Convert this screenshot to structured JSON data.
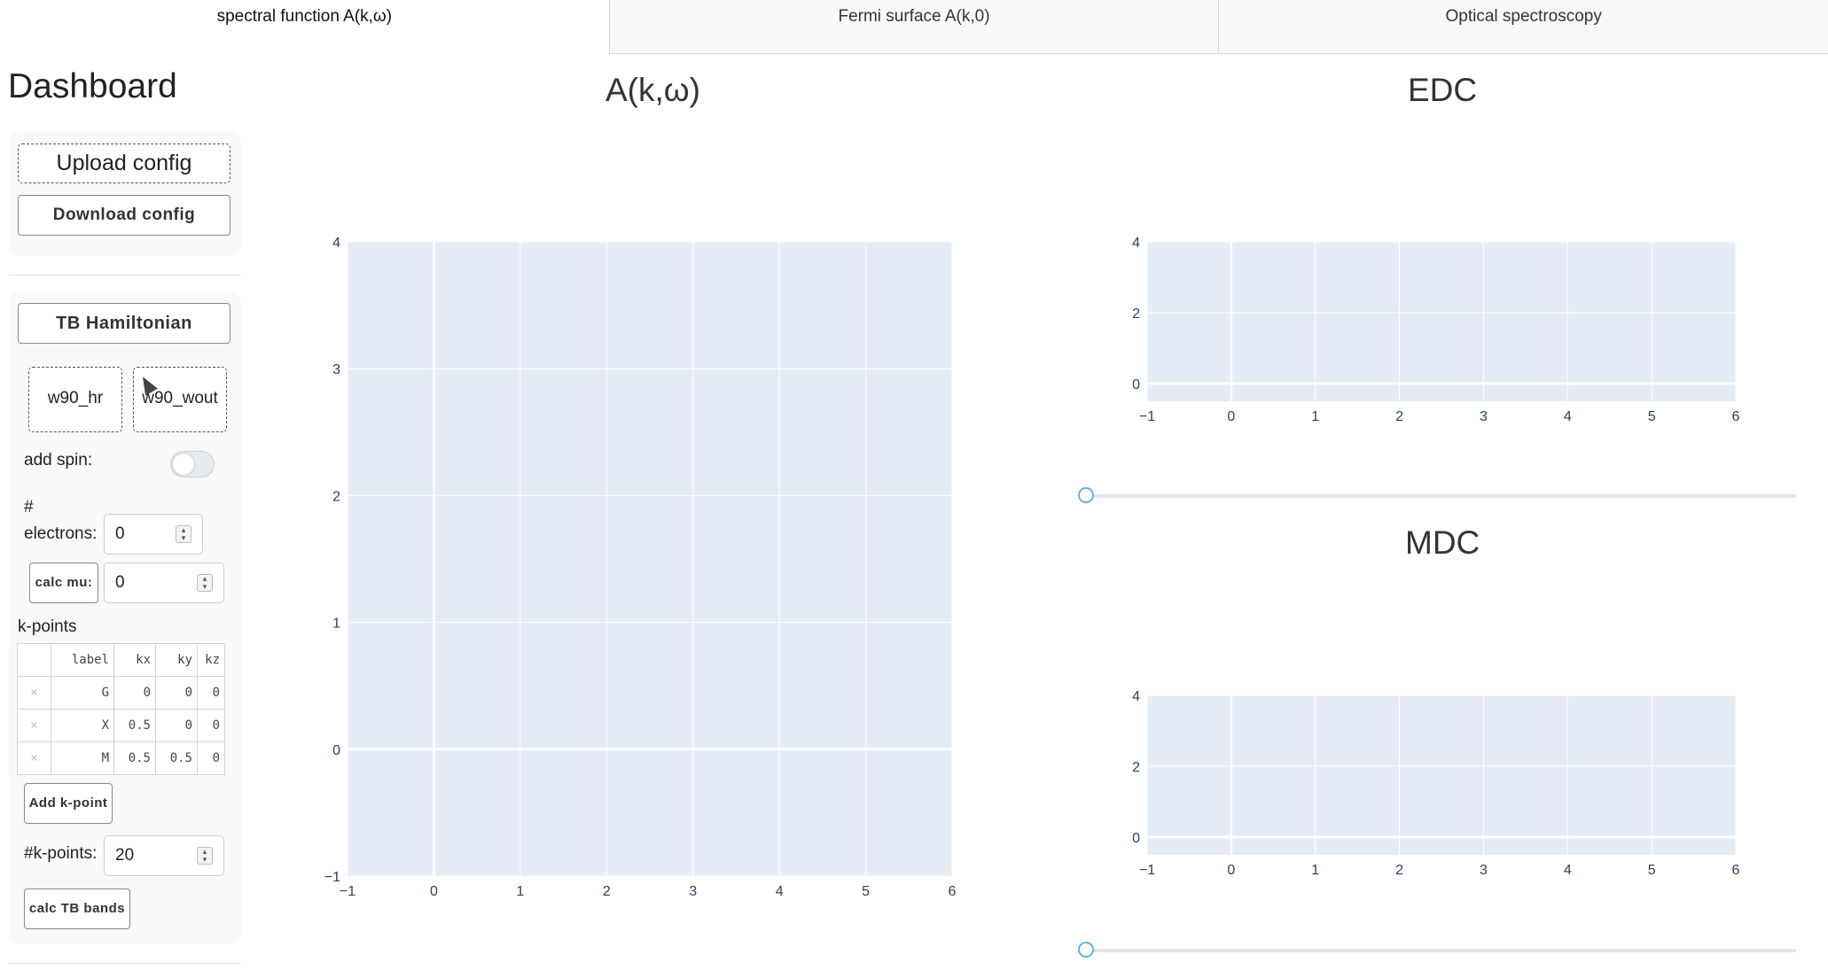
{
  "tabs": [
    {
      "label": "spectral function A(k,ω)",
      "active": true
    },
    {
      "label": "Fermi surface A(k,0)",
      "active": false
    },
    {
      "label": "Optical spectroscopy",
      "active": false
    }
  ],
  "sidebar": {
    "title": "Dashboard",
    "upload_config": "Upload config",
    "download_config": "Download config",
    "tb_hamiltonian": "TB Hamiltonian",
    "w90_hr": "w90_hr",
    "w90_wout": "w90_wout",
    "add_spin_label": "add spin:",
    "add_spin_value": false,
    "electrons_label_hash": "#",
    "electrons_label": "electrons:",
    "electrons_value": "0",
    "calc_mu": "calc mu:",
    "mu_value": "0",
    "kpoints_label": "k-points",
    "kpoints_table": {
      "headers": [
        "label",
        "kx",
        "ky",
        "kz"
      ],
      "rows": [
        [
          "G",
          "0",
          "0",
          "0"
        ],
        [
          "X",
          "0.5",
          "0",
          "0"
        ],
        [
          "M",
          "0.5",
          "0.5",
          "0"
        ]
      ]
    },
    "add_kpoint": "Add k-point",
    "nk_label": "#k-points:",
    "nk_value": "20",
    "calc_tb_bands": "calc TB bands"
  },
  "plot_colors": {
    "bg": "#e5ecf6",
    "grid": "#ffffff",
    "tick": "#2a3f5f"
  },
  "chart_data": [
    {
      "type": "heatmap",
      "title": "A(k,ω)",
      "xlabel": "",
      "ylabel": "",
      "xlim": [
        -1,
        6
      ],
      "ylim": [
        -1,
        4
      ],
      "xticks": [
        "−1",
        "0",
        "1",
        "2",
        "3",
        "4",
        "5",
        "6"
      ],
      "yticks": [
        "−1",
        "0",
        "1",
        "2",
        "3",
        "4"
      ],
      "series": []
    },
    {
      "type": "line",
      "title": "EDC",
      "xlim": [
        -1,
        6
      ],
      "ylim": [
        -1,
        4
      ],
      "xticks": [
        "−1",
        "0",
        "1",
        "2",
        "3",
        "4",
        "5",
        "6"
      ],
      "yticks": [
        "0",
        "2",
        "4"
      ],
      "series": []
    },
    {
      "type": "line",
      "title": "MDC",
      "xlim": [
        -1,
        6
      ],
      "ylim": [
        -1,
        4
      ],
      "xticks": [
        "−1",
        "0",
        "1",
        "2",
        "3",
        "4",
        "5",
        "6"
      ],
      "yticks": [
        "0",
        "2",
        "4"
      ],
      "series": []
    }
  ],
  "edc_slider_value": 0,
  "mdc_slider_value": 0
}
